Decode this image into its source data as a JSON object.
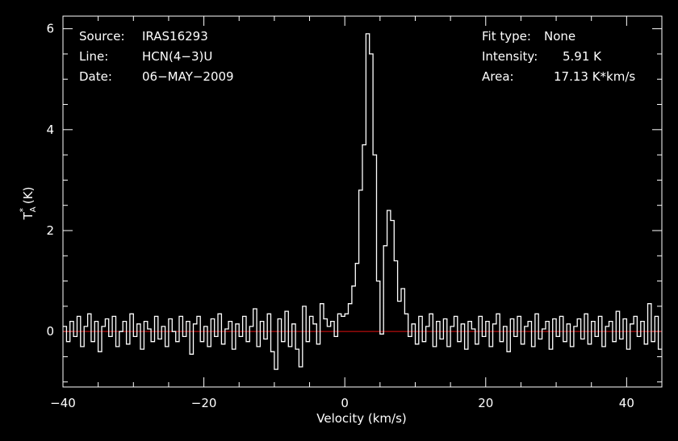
{
  "colors": {
    "background": "#000000",
    "foreground": "#ffffff",
    "baseline": "#e01010"
  },
  "info": {
    "source_label": "Source:",
    "source_value": "IRAS16293",
    "line_label": "Line:",
    "line_value": "HCN(4−3)U",
    "date_label": "Date:",
    "date_value": "06−MAY−2009",
    "fit_label": "Fit type:",
    "fit_value": "None",
    "intensity_label": "Intensity:",
    "intensity_value": "5.91 K",
    "area_label": "Area:",
    "area_value": "17.13 K*km/s"
  },
  "chart_data": {
    "type": "line",
    "title": "",
    "xlabel": "Velocity (km/s)",
    "ylabel_main": "T",
    "ylabel_sup": "*",
    "ylabel_sub": "A",
    "ylabel_unit": " (K)",
    "xlim": [
      -40,
      45
    ],
    "ylim": [
      -1.1,
      6.25
    ],
    "xticks": [
      -40,
      -20,
      0,
      20,
      40
    ],
    "xtick_labels": [
      "−40",
      "−20",
      "0",
      "20",
      "40"
    ],
    "yticks": [
      0,
      2,
      4,
      6
    ],
    "ytick_labels": [
      "0",
      "2",
      "4",
      "6"
    ],
    "baseline": 0,
    "grid": false,
    "series": [
      {
        "style": "histogram",
        "x": [
          -40,
          -39.5,
          -39,
          -38.5,
          -38,
          -37.5,
          -37,
          -36.5,
          -36,
          -35.5,
          -35,
          -34.5,
          -34,
          -33.5,
          -33,
          -32.5,
          -32,
          -31.5,
          -31,
          -30.5,
          -30,
          -29.5,
          -29,
          -28.5,
          -28,
          -27.5,
          -27,
          -26.5,
          -26,
          -25.5,
          -25,
          -24.5,
          -24,
          -23.5,
          -23,
          -22.5,
          -22,
          -21.5,
          -21,
          -20.5,
          -20,
          -19.5,
          -19,
          -18.5,
          -18,
          -17.5,
          -17,
          -16.5,
          -16,
          -15.5,
          -15,
          -14.5,
          -14,
          -13.5,
          -13,
          -12.5,
          -12,
          -11.5,
          -11,
          -10.5,
          -10,
          -9.5,
          -9,
          -8.5,
          -8,
          -7.5,
          -7,
          -6.5,
          -6,
          -5.5,
          -5,
          -4.5,
          -4,
          -3.5,
          -3,
          -2.5,
          -2,
          -1.5,
          -1,
          -0.5,
          0,
          0.5,
          1,
          1.5,
          2,
          2.5,
          3,
          3.5,
          4,
          4.5,
          5,
          5.5,
          6,
          6.5,
          7,
          7.5,
          8,
          8.5,
          9,
          9.5,
          10,
          10.5,
          11,
          11.5,
          12,
          12.5,
          13,
          13.5,
          14,
          14.5,
          15,
          15.5,
          16,
          16.5,
          17,
          17.5,
          18,
          18.5,
          19,
          19.5,
          20,
          20.5,
          21,
          21.5,
          22,
          22.5,
          23,
          23.5,
          24,
          24.5,
          25,
          25.5,
          26,
          26.5,
          27,
          27.5,
          28,
          28.5,
          29,
          29.5,
          30,
          30.5,
          31,
          31.5,
          32,
          32.5,
          33,
          33.5,
          34,
          34.5,
          35,
          35.5,
          36,
          36.5,
          37,
          37.5,
          38,
          38.5,
          39,
          39.5,
          40,
          40.5,
          41,
          41.5,
          42,
          42.5,
          43,
          43.5,
          44,
          44.5
        ],
        "y": [
          0.1,
          -0.2,
          0.2,
          -0.1,
          0.3,
          -0.3,
          0.1,
          0.35,
          -0.2,
          0.2,
          -0.4,
          0.1,
          0.25,
          -0.1,
          0.3,
          -0.3,
          0,
          0.2,
          -0.25,
          0.35,
          -0.1,
          0.15,
          -0.35,
          0.2,
          0.05,
          -0.2,
          0.3,
          -0.15,
          0.1,
          -0.3,
          0.25,
          0,
          -0.2,
          0.3,
          -0.1,
          0.2,
          -0.45,
          0.15,
          0.3,
          -0.2,
          0.1,
          -0.3,
          0.25,
          -0.1,
          0.35,
          -0.25,
          0.05,
          0.2,
          -0.35,
          0.15,
          -0.1,
          0.3,
          -0.2,
          0.1,
          0.45,
          -0.3,
          0.2,
          -0.15,
          0.35,
          -0.4,
          -0.75,
          0.25,
          -0.2,
          0.4,
          -0.3,
          0.15,
          -0.35,
          -0.7,
          0.5,
          -0.2,
          0.3,
          0.15,
          -0.25,
          0.55,
          0.25,
          0.1,
          0.2,
          -0.1,
          0.35,
          0.3,
          0.35,
          0.55,
          0.9,
          1.35,
          2.8,
          3.7,
          5.9,
          5.5,
          3.5,
          1.0,
          -0.05,
          1.7,
          2.4,
          2.2,
          1.4,
          0.6,
          0.85,
          0.35,
          -0.1,
          0.15,
          -0.25,
          0.3,
          -0.2,
          0.1,
          0.35,
          -0.3,
          0.2,
          -0.15,
          0.25,
          -0.3,
          0.1,
          0.3,
          -0.2,
          0.15,
          -0.35,
          0.2,
          0.05,
          -0.25,
          0.3,
          -0.1,
          0.2,
          -0.3,
          0.15,
          0.35,
          -0.2,
          0.1,
          -0.4,
          0.25,
          -0.1,
          0.3,
          -0.25,
          0.1,
          0.2,
          -0.3,
          0.35,
          -0.15,
          0.05,
          0.2,
          -0.35,
          0.25,
          -0.1,
          0.3,
          -0.2,
          0.15,
          -0.3,
          0.1,
          0.25,
          -0.15,
          0.35,
          -0.25,
          0.2,
          -0.1,
          0.3,
          -0.3,
          0.1,
          0.2,
          -0.2,
          0.4,
          -0.15,
          0.25,
          -0.35,
          0.15,
          0.3,
          -0.1,
          0.2,
          -0.25,
          0.55,
          -0.2,
          0.3,
          -0.35
        ]
      }
    ]
  }
}
